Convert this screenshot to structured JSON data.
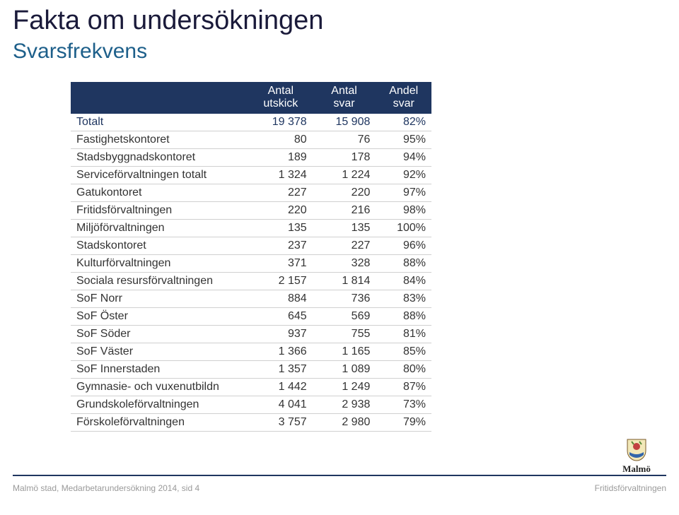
{
  "title": "Fakta om undersökningen",
  "subtitle": "Svarsfrekvens",
  "table": {
    "columns": [
      {
        "l1": "Antal",
        "l2": "utskick"
      },
      {
        "l1": "Antal",
        "l2": "svar"
      },
      {
        "l1": "Andel",
        "l2": "svar"
      }
    ],
    "header_bg": "#1f3660",
    "header_text_color": "#ffffff",
    "row_border_color": "#d0d0d0",
    "total_row_text_color": "#1f3660",
    "font_size": 16,
    "rows": [
      {
        "label": "Totalt",
        "c0": "19 378",
        "c1": "15 908",
        "c2": "82%",
        "is_total": true
      },
      {
        "label": "Fastighetskontoret",
        "c0": "80",
        "c1": "76",
        "c2": "95%"
      },
      {
        "label": "Stadsbyggnadskontoret",
        "c0": "189",
        "c1": "178",
        "c2": "94%"
      },
      {
        "label": "Serviceförvaltningen totalt",
        "c0": "1 324",
        "c1": "1 224",
        "c2": "92%"
      },
      {
        "label": "Gatukontoret",
        "c0": "227",
        "c1": "220",
        "c2": "97%"
      },
      {
        "label": "Fritidsförvaltningen",
        "c0": "220",
        "c1": "216",
        "c2": "98%"
      },
      {
        "label": "Miljöförvaltningen",
        "c0": "135",
        "c1": "135",
        "c2": "100%"
      },
      {
        "label": "Stadskontoret",
        "c0": "237",
        "c1": "227",
        "c2": "96%"
      },
      {
        "label": "Kulturförvaltningen",
        "c0": "371",
        "c1": "328",
        "c2": "88%"
      },
      {
        "label": "Sociala resursförvaltningen",
        "c0": "2 157",
        "c1": "1 814",
        "c2": "84%"
      },
      {
        "label": "SoF Norr",
        "c0": "884",
        "c1": "736",
        "c2": "83%"
      },
      {
        "label": "SoF Öster",
        "c0": "645",
        "c1": "569",
        "c2": "88%"
      },
      {
        "label": "SoF Söder",
        "c0": "937",
        "c1": "755",
        "c2": "81%"
      },
      {
        "label": "SoF Väster",
        "c0": "1 366",
        "c1": "1 165",
        "c2": "85%"
      },
      {
        "label": "SoF Innerstaden",
        "c0": "1 357",
        "c1": "1 089",
        "c2": "80%"
      },
      {
        "label": "Gymnasie- och vuxenutbildn",
        "c0": "1 442",
        "c1": "1 249",
        "c2": "87%"
      },
      {
        "label": "Grundskoleförvaltningen",
        "c0": "4 041",
        "c1": "2 938",
        "c2": "73%"
      },
      {
        "label": "Förskoleförvaltningen",
        "c0": "3 757",
        "c1": "2 980",
        "c2": "79%"
      }
    ]
  },
  "logo": {
    "text": "Malmö"
  },
  "footer": {
    "left": "Malmö stad, Medarbetarundersökning 2014, sid 4",
    "right": "Fritidsförvaltningen"
  },
  "colors": {
    "title": "#1a1a3a",
    "subtitle": "#1d5f8a",
    "divider": "#1f3660",
    "footer_text": "#9a9a9a",
    "background": "#ffffff"
  }
}
